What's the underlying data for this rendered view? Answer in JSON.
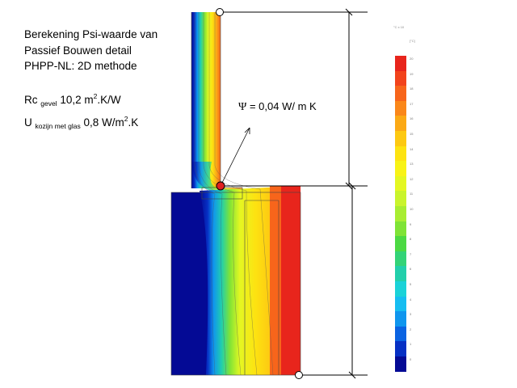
{
  "notes": {
    "line1": "Berekening Psi-waarde van",
    "line2": "Passief Bouwen detail",
    "line3": "PHPP-NL:  2D methode",
    "rc_prefix": "Rc ",
    "rc_sub": "gevel",
    "rc_value": " 10,2 m",
    "rc_sup": "2",
    "rc_unit": ".K/W",
    "u_prefix": "U ",
    "u_sub": "kozijn  met glas",
    "u_value": " 0,8 W/m",
    "u_sup": "2",
    "u_unit": ".K"
  },
  "psi": {
    "symbol": "Ψ",
    "value": " = 0,04 W/ m K"
  },
  "legend": {
    "header_top": "°C x 10",
    "header_unit": "[°C]",
    "ticks": [
      "20",
      "19",
      "18",
      "17",
      "16",
      "15",
      "14",
      "13",
      "12",
      "11",
      "10",
      "9",
      "8",
      "7",
      "6",
      "5",
      "4",
      "3",
      "2",
      "1",
      "0"
    ],
    "colors": [
      "#e8251c",
      "#f2431c",
      "#f7651b",
      "#fa871a",
      "#fba915",
      "#fdc912",
      "#fde311",
      "#f8f316",
      "#e4f722",
      "#c9f42c",
      "#a8ed32",
      "#7fe336",
      "#4cd943",
      "#33d377",
      "#22cfab",
      "#1ad2d8",
      "#16bdf1",
      "#0f96ee",
      "#0a63e2",
      "#0630c4",
      "#040a95"
    ]
  },
  "colors": {
    "cold": "#000080",
    "warm": "#e8251c",
    "point_fill": "#e02020"
  }
}
